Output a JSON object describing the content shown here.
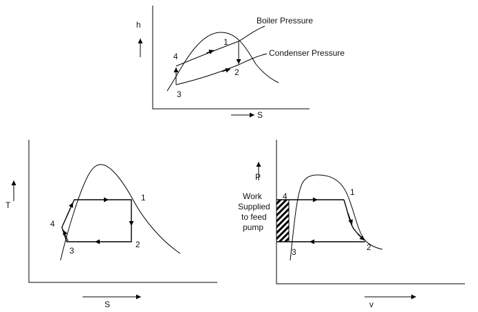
{
  "hs_diagram": {
    "y_axis_label": "h",
    "x_axis_label": "S",
    "curve_labels": {
      "boiler": "Boiler Pressure",
      "condenser": "Condenser Pressure"
    },
    "points": {
      "p1": "1",
      "p2": "2",
      "p3": "3",
      "p4": "4"
    }
  },
  "ts_diagram": {
    "y_axis_label": "T",
    "x_axis_label": "S",
    "points": {
      "p1": "1",
      "p2": "2",
      "p3": "3",
      "p4": "4"
    }
  },
  "pv_diagram": {
    "y_axis_label": "P",
    "x_axis_label": "v",
    "annotation_lines": [
      "Work",
      "Supplied",
      "to feed",
      "pump"
    ],
    "points": {
      "p1": "1",
      "p2": "2",
      "p3": "3",
      "p4": "4"
    }
  }
}
